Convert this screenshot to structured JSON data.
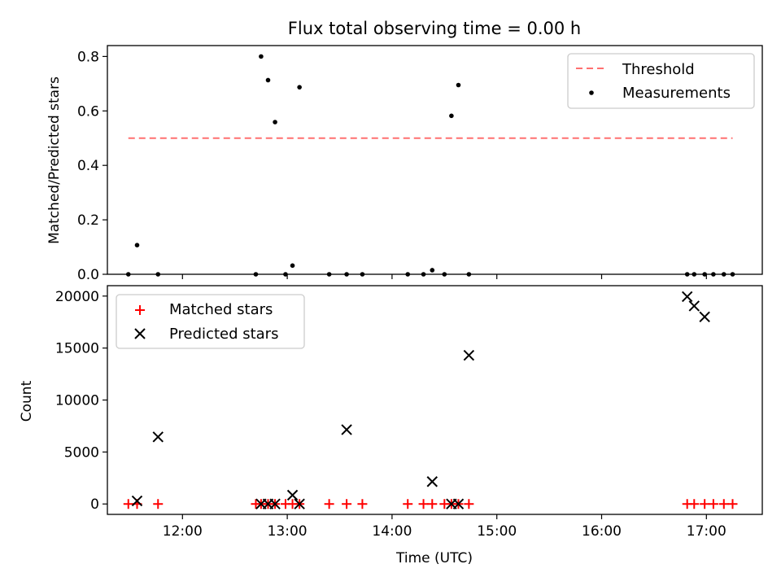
{
  "chart_data": [
    {
      "type": "scatter",
      "title": "Flux total observing time = 0.00 h",
      "xlabel": "",
      "ylabel": "Matched/Predicted stars",
      "x_unit": "time (UTC)",
      "xlim": [
        "11:17",
        "17:32"
      ],
      "ylim": [
        0,
        0.84
      ],
      "yticks": [
        0.0,
        0.2,
        0.4,
        0.6,
        0.8
      ],
      "ytick_labels": [
        "0.0",
        "0.2",
        "0.4",
        "0.6",
        "0.8"
      ],
      "xtick_labels_shown": false,
      "legend_position": "top-right",
      "threshold": {
        "name": "Threshold",
        "value": 0.5,
        "x_start": "11:29",
        "x_end": "17:15",
        "color": "#ff7070"
      },
      "series": [
        {
          "name": "Measurements",
          "color": "#000000",
          "marker": "dot",
          "points": [
            [
              "11:29",
              0.0
            ],
            [
              "11:34",
              0.107
            ],
            [
              "11:46",
              0.0
            ],
            [
              "12:42",
              0.0
            ],
            [
              "12:45",
              0.8
            ],
            [
              "12:49",
              0.713
            ],
            [
              "12:53",
              0.559
            ],
            [
              "12:59",
              0.0
            ],
            [
              "13:03",
              0.032
            ],
            [
              "13:07",
              0.687
            ],
            [
              "13:24",
              0.0
            ],
            [
              "13:34",
              0.0
            ],
            [
              "13:43",
              0.0
            ],
            [
              "14:09",
              0.0
            ],
            [
              "14:18",
              0.0
            ],
            [
              "14:23",
              0.015
            ],
            [
              "14:30",
              0.0
            ],
            [
              "14:34",
              0.582
            ],
            [
              "14:38",
              0.695
            ],
            [
              "14:44",
              0.0
            ],
            [
              "16:49",
              0.0
            ],
            [
              "16:53",
              0.0
            ],
            [
              "16:59",
              0.0
            ],
            [
              "17:04",
              0.0
            ],
            [
              "17:10",
              0.0
            ],
            [
              "17:15",
              0.0
            ]
          ]
        }
      ]
    },
    {
      "type": "scatter",
      "title": "",
      "xlabel": "Time (UTC)",
      "ylabel": "Count",
      "xlim": [
        "11:17",
        "17:32"
      ],
      "ylim": [
        -1000,
        21000
      ],
      "yticks": [
        0,
        5000,
        10000,
        15000,
        20000
      ],
      "ytick_labels": [
        "0",
        "5000",
        "10000",
        "15000",
        "20000"
      ],
      "xticks": [
        "12:00",
        "13:00",
        "14:00",
        "15:00",
        "16:00",
        "17:00"
      ],
      "xtick_labels": [
        "12:00",
        "13:00",
        "14:00",
        "15:00",
        "16:00",
        "17:00"
      ],
      "legend_position": "top-left",
      "series": [
        {
          "name": "Matched stars",
          "color": "#ff0000",
          "marker": "plus",
          "points": [
            [
              "11:29",
              0
            ],
            [
              "11:34",
              0
            ],
            [
              "11:46",
              0
            ],
            [
              "12:42",
              0
            ],
            [
              "12:45",
              0
            ],
            [
              "12:49",
              0
            ],
            [
              "12:53",
              0
            ],
            [
              "12:59",
              0
            ],
            [
              "13:03",
              0
            ],
            [
              "13:07",
              0
            ],
            [
              "13:24",
              0
            ],
            [
              "13:34",
              0
            ],
            [
              "13:43",
              0
            ],
            [
              "14:09",
              0
            ],
            [
              "14:18",
              0
            ],
            [
              "14:23",
              0
            ],
            [
              "14:30",
              0
            ],
            [
              "14:34",
              0
            ],
            [
              "14:38",
              0
            ],
            [
              "14:44",
              0
            ],
            [
              "16:49",
              0
            ],
            [
              "16:53",
              0
            ],
            [
              "16:59",
              0
            ],
            [
              "17:04",
              0
            ],
            [
              "17:10",
              0
            ],
            [
              "17:15",
              0
            ]
          ]
        },
        {
          "name": "Predicted stars",
          "color": "#000000",
          "marker": "x",
          "points": [
            [
              "11:34",
              300
            ],
            [
              "11:46",
              6450
            ],
            [
              "12:45",
              0
            ],
            [
              "12:49",
              0
            ],
            [
              "12:53",
              0
            ],
            [
              "13:03",
              850
            ],
            [
              "13:07",
              0
            ],
            [
              "13:34",
              7150
            ],
            [
              "14:23",
              2150
            ],
            [
              "14:34",
              0
            ],
            [
              "14:38",
              0
            ],
            [
              "14:44",
              14300
            ],
            [
              "16:49",
              19950
            ],
            [
              "16:53",
              19050
            ],
            [
              "16:59",
              18000
            ]
          ]
        }
      ]
    }
  ]
}
